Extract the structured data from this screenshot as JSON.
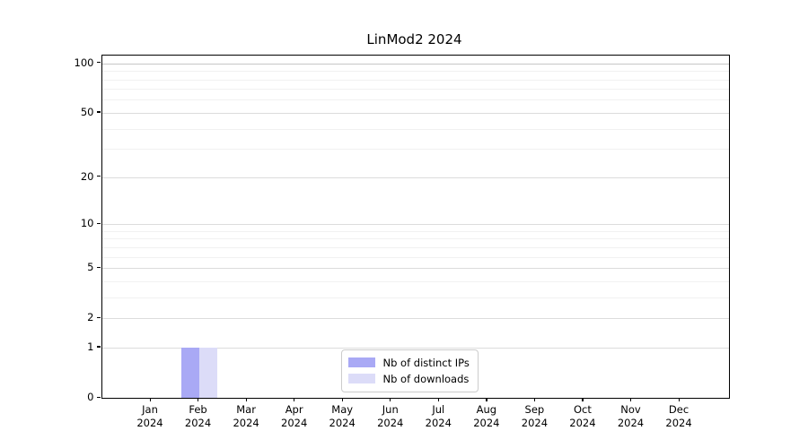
{
  "title": "LinMod2 2024",
  "legend": {
    "items": [
      {
        "label": "Nb of distinct IPs",
        "color": "#a9a9f5"
      },
      {
        "label": "Nb of downloads",
        "color": "#dcdcf8"
      }
    ]
  },
  "axes": {
    "y_major_ticks": [
      0,
      1,
      2,
      5,
      10,
      20,
      50,
      100
    ],
    "y_minor_ticks": [
      3,
      4,
      6,
      7,
      8,
      9,
      30,
      40,
      60,
      70,
      80,
      90
    ],
    "x_month_labels": [
      "Jan",
      "Feb",
      "Mar",
      "Apr",
      "May",
      "Jun",
      "Jul",
      "Aug",
      "Sep",
      "Oct",
      "Nov",
      "Dec"
    ],
    "x_year_label": "2024"
  },
  "colors": {
    "grid_major": "#dcdcdc",
    "grid_minor": "#f1f1f1",
    "grid_top": "#c6c6c6",
    "spine": "#000000"
  },
  "chart_data": {
    "type": "bar",
    "title": "LinMod2 2024",
    "categories": [
      "Jan 2024",
      "Feb 2024",
      "Mar 2024",
      "Apr 2024",
      "May 2024",
      "Jun 2024",
      "Jul 2024",
      "Aug 2024",
      "Sep 2024",
      "Oct 2024",
      "Nov 2024",
      "Dec 2024"
    ],
    "series": [
      {
        "name": "Nb of distinct IPs",
        "color": "#a9a9f5",
        "values": [
          0,
          1,
          0,
          0,
          0,
          0,
          0,
          0,
          0,
          0,
          0,
          0
        ]
      },
      {
        "name": "Nb of downloads",
        "color": "#dcdcf8",
        "values": [
          0,
          1,
          0,
          0,
          0,
          0,
          0,
          0,
          0,
          0,
          0,
          0
        ]
      }
    ],
    "xlabel": "",
    "ylabel": "",
    "ylim": [
      0,
      100
    ],
    "yscale": "log1p",
    "y_ticks": [
      0,
      1,
      2,
      5,
      10,
      20,
      50,
      100
    ],
    "grid": true,
    "legend_position": "lower center inside plot"
  }
}
